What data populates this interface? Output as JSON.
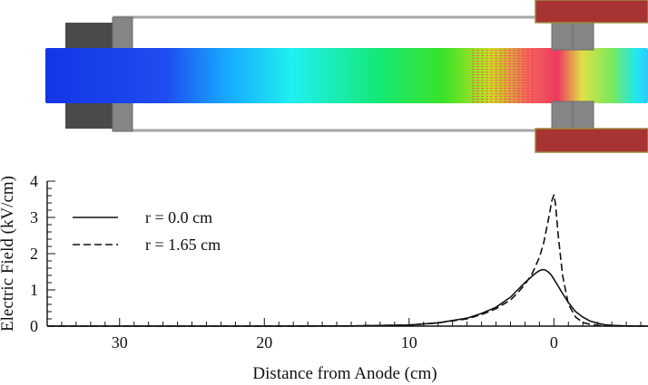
{
  "colors": {
    "electrode_dark": "#4a4a4a",
    "insulator_gray": "#858585",
    "anode_red": "#a83333",
    "anode_border": "#9a8a3a",
    "tube_line": "#a6a6a6",
    "curve": "#111111"
  },
  "chart_data": {
    "type": "line",
    "title": "",
    "xlabel": "Distance from Anode (cm)",
    "ylabel": "Electric Field (kV/cm)",
    "x_reversed": true,
    "xlim": [
      35,
      -6.5
    ],
    "ylim": [
      0,
      4
    ],
    "x_ticks": [
      30,
      20,
      10,
      0
    ],
    "x_tick_labels": [
      "30",
      "20",
      "10",
      "0"
    ],
    "y_ticks": [
      0,
      1,
      2,
      3,
      4
    ],
    "y_tick_labels": [
      "0",
      "1",
      "2",
      "3",
      "4"
    ],
    "legend_position": "upper-left",
    "series": [
      {
        "name": "r = 0.0 cm",
        "style": "solid",
        "x": [
          35,
          20,
          14,
          10,
          8,
          6,
          5,
          4,
          3,
          2.5,
          2,
          1.5,
          1.2,
          1,
          0.8,
          0.6,
          0.4,
          0.2,
          0,
          -0.3,
          -0.6,
          -1,
          -1.5,
          -2,
          -2.5,
          -3,
          -3.5,
          -4,
          -5,
          -6.5
        ],
        "y": [
          0,
          0,
          0.005,
          0.03,
          0.09,
          0.22,
          0.35,
          0.52,
          0.8,
          1.0,
          1.2,
          1.38,
          1.48,
          1.53,
          1.56,
          1.55,
          1.5,
          1.42,
          1.3,
          1.1,
          0.9,
          0.65,
          0.4,
          0.25,
          0.14,
          0.08,
          0.04,
          0.02,
          0.005,
          0
        ]
      },
      {
        "name": "r = 1.65 cm",
        "style": "dashed",
        "x": [
          35,
          20,
          14,
          10,
          8,
          6,
          5,
          4,
          3,
          2.5,
          2,
          1.5,
          1,
          0.7,
          0.5,
          0.3,
          0.15,
          0,
          -0.1,
          -0.3,
          -0.6,
          -1,
          -1.5,
          -2,
          -2.5,
          -3,
          -3.5,
          -4,
          -5,
          -6.5
        ],
        "y": [
          0,
          0,
          0.005,
          0.03,
          0.09,
          0.2,
          0.32,
          0.48,
          0.72,
          0.92,
          1.15,
          1.45,
          1.9,
          2.3,
          2.7,
          3.1,
          3.45,
          3.62,
          3.4,
          2.5,
          1.4,
          0.6,
          0.25,
          0.1,
          0.05,
          0.02,
          0.01,
          0.005,
          0,
          0
        ]
      }
    ]
  }
}
